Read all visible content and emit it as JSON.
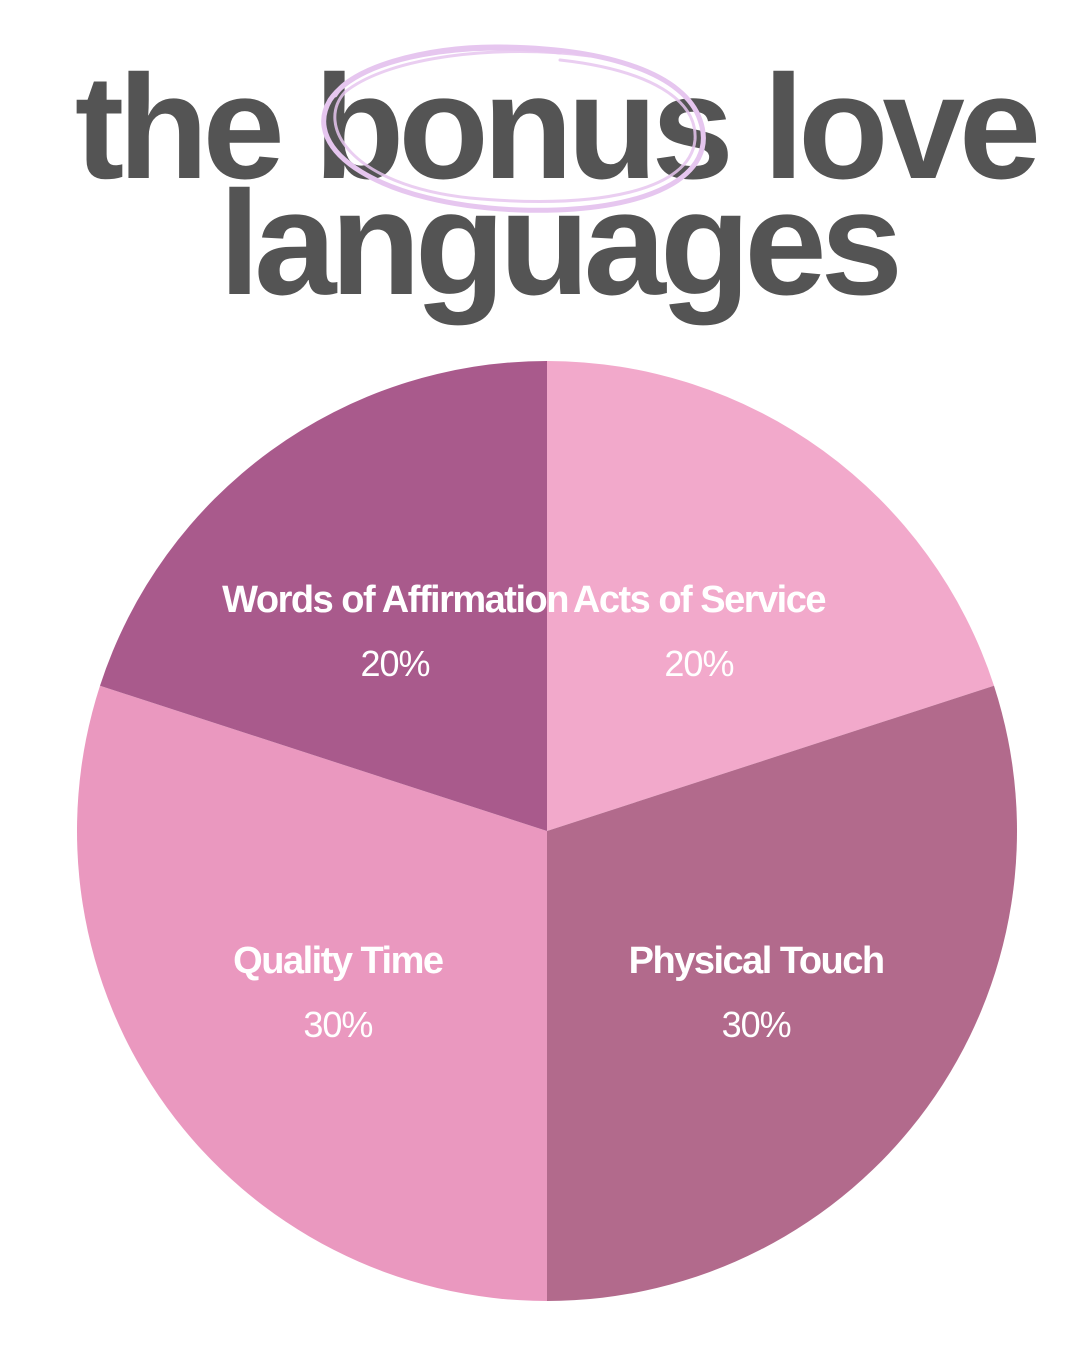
{
  "title": {
    "line1_before": "the ",
    "line1_highlight": "bonus",
    "line1_after": " love",
    "line2": "languages",
    "text_color": "#545454",
    "highlight_circle_color": "#e6c6ef"
  },
  "chart_data": {
    "type": "pie",
    "title": "the bonus love languages",
    "start_angle_deg": 0,
    "direction": "clockwise",
    "slices": [
      {
        "label": "Acts of Service",
        "value": 20,
        "value_label": "20%",
        "color": "#f2a9cb"
      },
      {
        "label": "Physical Touch",
        "value": 30,
        "value_label": "30%",
        "color": "#b26a8c"
      },
      {
        "label": "Quality Time",
        "value": 30,
        "value_label": "30%",
        "color": "#ea98bf"
      },
      {
        "label": "Words of Affirmation",
        "value": 20,
        "value_label": "20%",
        "color": "#a95a8c"
      }
    ],
    "label_color": "#ffffff"
  }
}
